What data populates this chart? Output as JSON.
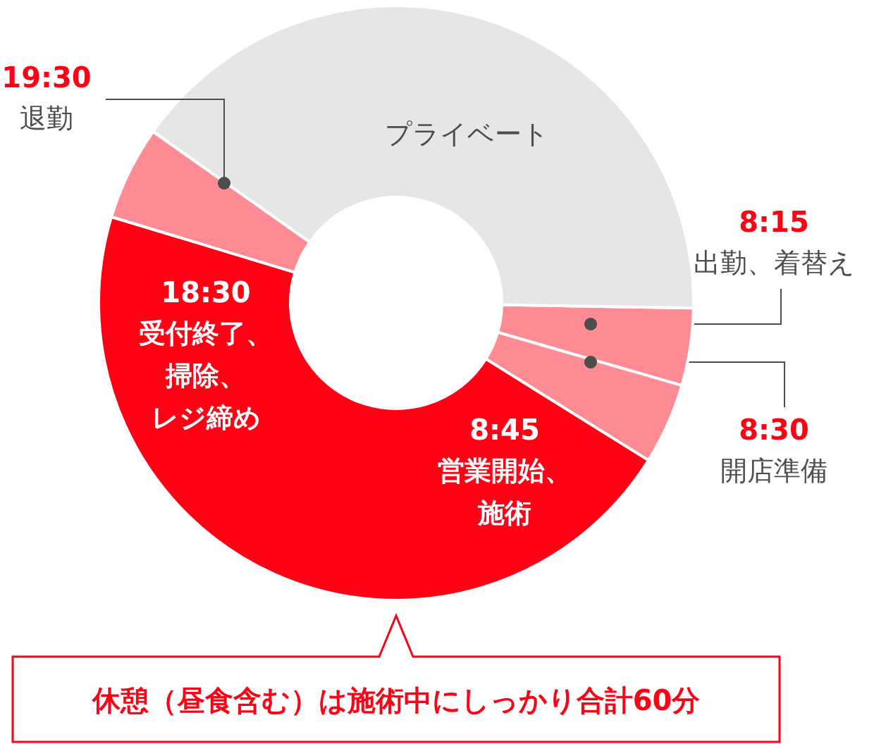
{
  "chart_data": {
    "type": "donut",
    "categories": [
      "8:15\n出勤、着替え",
      "8:30\n開店準備",
      "8:45\n営業開始、施術",
      null,
      "プライベート"
    ],
    "values": [
      4.2,
      4.4,
      45.8,
      5.1,
      40.5
    ],
    "colors": [
      "#ff8c94",
      "#ff8c94",
      "#ff0015",
      "#ff8c94",
      "#e6e6e6"
    ],
    "annotations": [
      "19:30\n退勤",
      "18:30\n受付終了、掃除、レジ締め",
      "休憩（昼食含む）は施術中にしっかり合計60分"
    ]
  }
}
